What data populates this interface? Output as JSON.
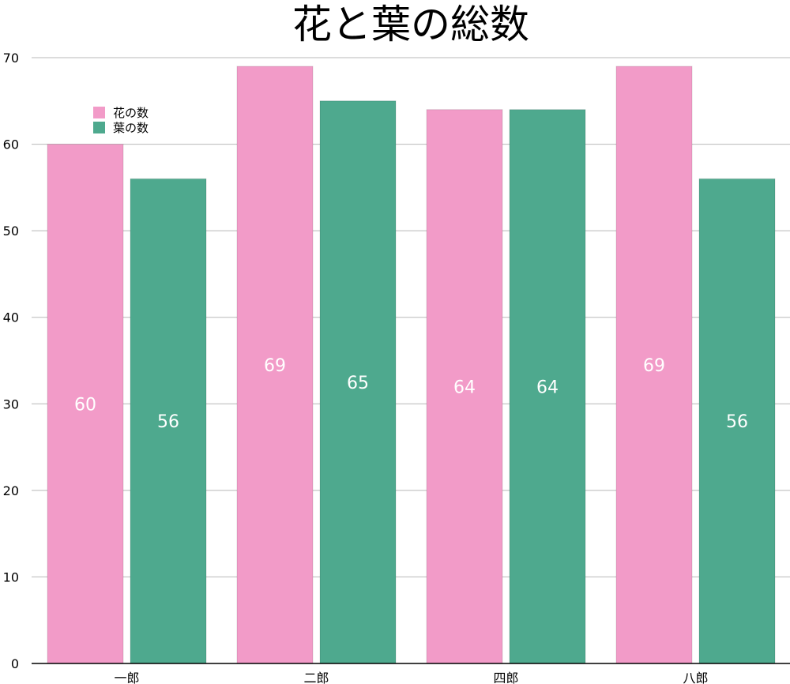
{
  "chart_data": {
    "type": "bar",
    "title": "花と葉の総数",
    "categories": [
      "一郎",
      "二郎",
      "四郎",
      "八郎"
    ],
    "series": [
      {
        "name": "花の数",
        "color": "#f29bc8",
        "values": [
          60,
          69,
          64,
          69
        ]
      },
      {
        "name": "葉の数",
        "color": "#4ea98e",
        "values": [
          56,
          65,
          64,
          56
        ]
      }
    ],
    "yticks": [
      "0",
      "10",
      "20",
      "30",
      "40",
      "50",
      "60",
      "70"
    ],
    "ylim": [
      0,
      70
    ],
    "grid": true,
    "legend": "top-left"
  }
}
